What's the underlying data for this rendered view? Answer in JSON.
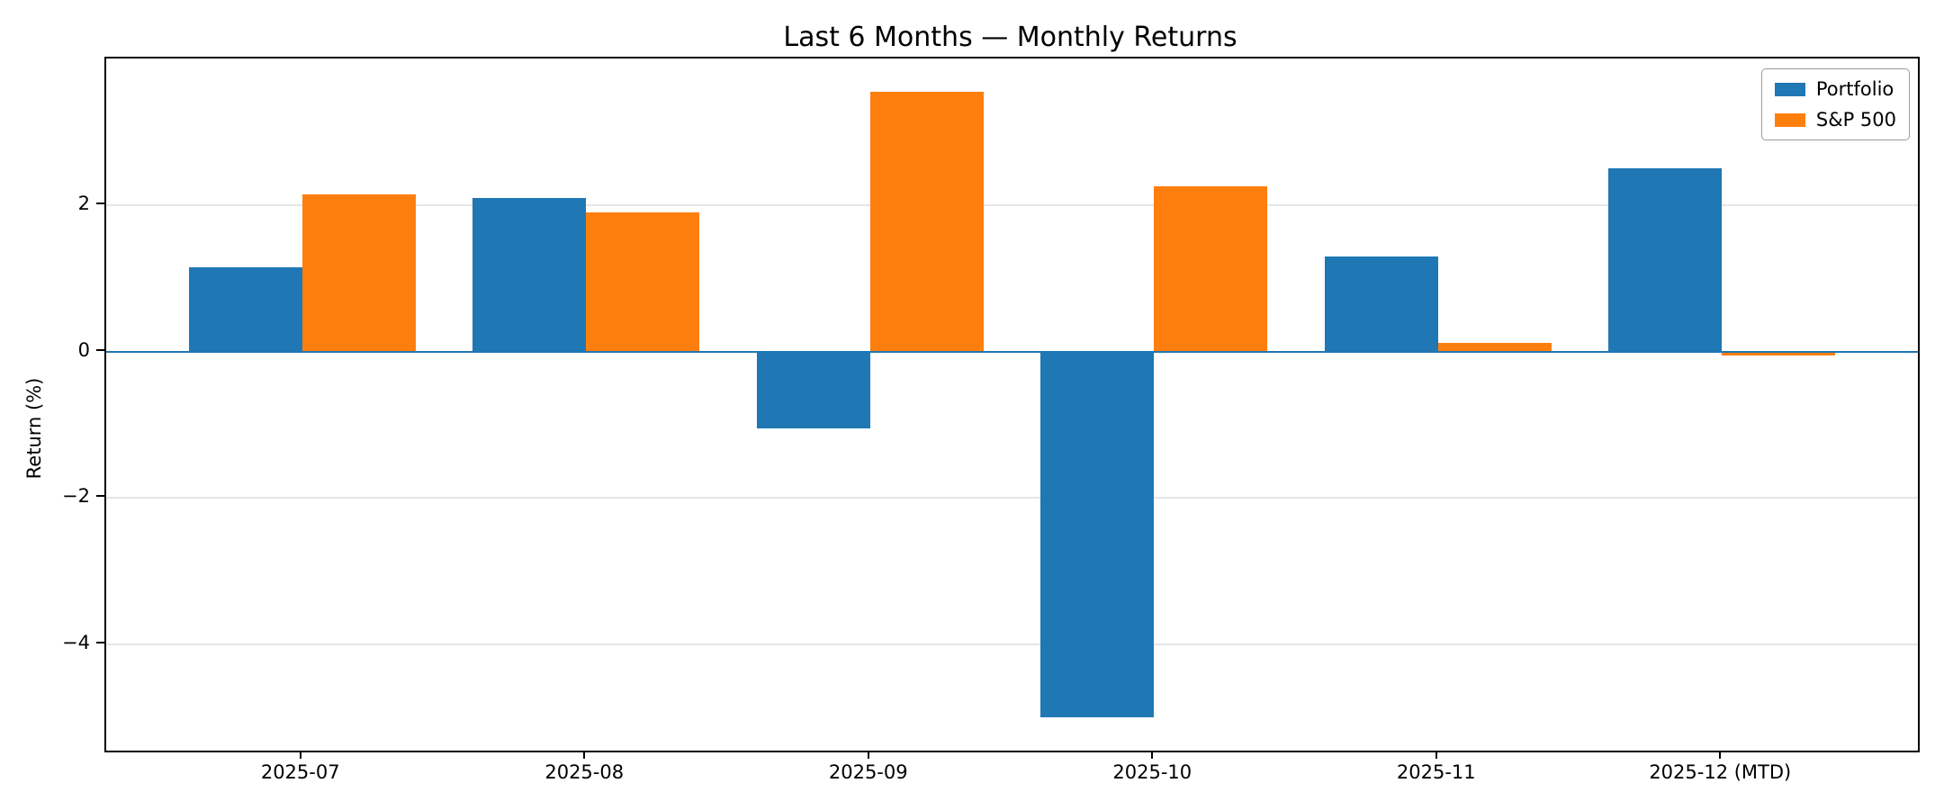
{
  "figure": {
    "background": "#ffffff"
  },
  "chart_data": {
    "type": "bar",
    "title": "Last 6 Months — Monthly Returns",
    "xlabel": "",
    "ylabel": "Return (%)",
    "categories": [
      "2025-07",
      "2025-08",
      "2025-09",
      "2025-10",
      "2025-11",
      "2025-12 (MTD)"
    ],
    "series": [
      {
        "name": "Portfolio",
        "color": "#1f77b4",
        "values": [
          1.15,
          2.1,
          -1.05,
          -5.0,
          1.3,
          2.5
        ]
      },
      {
        "name": "S&P 500",
        "color": "#ff7f0e",
        "values": [
          2.15,
          1.9,
          3.55,
          2.25,
          0.12,
          -0.05
        ]
      }
    ],
    "ylim": [
      -5.45,
      4.0
    ],
    "xlim": [
      -0.69,
      5.69
    ],
    "yticks": [
      2,
      0,
      -2,
      -4
    ],
    "bar_width_units": 0.4,
    "grid": true,
    "grid_color": "#e5e5e5",
    "zero_line_color": "#1f77b4",
    "legend_position": "upper right"
  }
}
